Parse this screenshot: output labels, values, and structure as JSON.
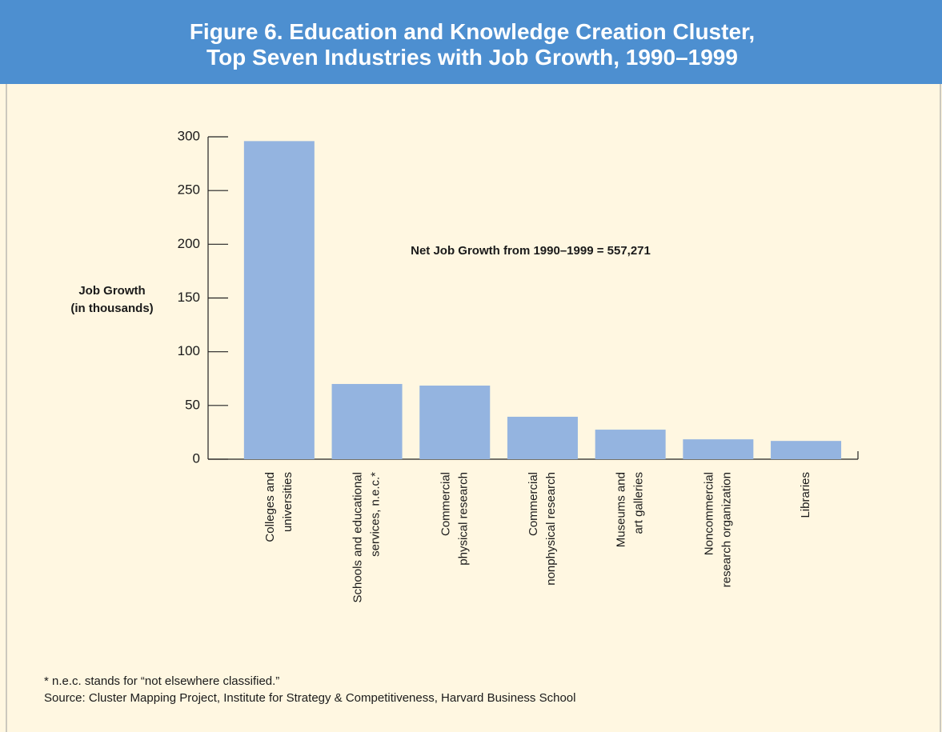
{
  "chart_data": {
    "type": "bar",
    "title": "Figure 6. Education and Knowledge Creation Cluster,\nTop Seven Industries with Job Growth, 1990–1999",
    "y_label": "Job Growth\n(in thousands)",
    "annotation": "Net Job Growth from 1990–1999 = 557,271",
    "categories": [
      "Colleges and\nuniversities",
      "Schools and educational\nservices, n.e.c.*",
      "Commercial\nphysical research",
      "Commercial\nnonphysical research",
      "Museums and\nart galleries",
      "Noncommercial\nresearch organization",
      "Libraries"
    ],
    "values": [
      296,
      70,
      68.5,
      39.5,
      27.5,
      18.5,
      17
    ],
    "color": "#94b4e0",
    "ylim": [
      0,
      300
    ],
    "yticks": [
      0,
      50,
      100,
      150,
      200,
      250,
      300
    ],
    "footnotes": [
      "* n.e.c. stands for “not elsewhere classified.”",
      "Source: Cluster Mapping Project, Institute for Strategy & Competitiveness, Harvard Business School"
    ]
  }
}
